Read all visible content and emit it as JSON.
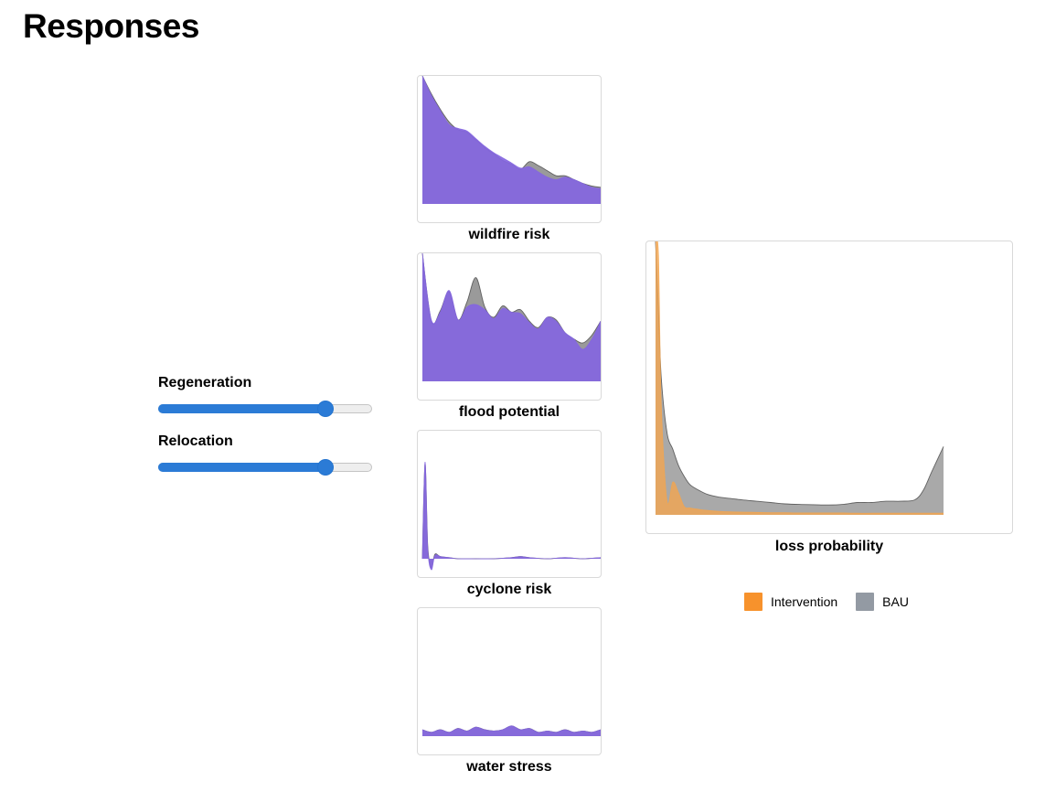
{
  "header": {
    "title": "Responses"
  },
  "sliders": [
    {
      "label": "Regeneration",
      "value": 0.78
    },
    {
      "label": "Relocation",
      "value": 0.78
    }
  ],
  "colors": {
    "intervention_small": "#8466e0",
    "bau": "#9a9a9a",
    "bau_stroke": "#555555",
    "intervention_large": "#f2a550",
    "legend_intervention": "#f7922c",
    "legend_bau": "#939aa3",
    "slider": "#2b7bd6"
  },
  "chart_data": [
    {
      "type": "area",
      "caption": "wildfire risk",
      "x": [
        0,
        0.05,
        0.1,
        0.15,
        0.2,
        0.25,
        0.3,
        0.35,
        0.4,
        0.45,
        0.5,
        0.55,
        0.6,
        0.65,
        0.7,
        0.75,
        0.8,
        0.85,
        0.9,
        0.95,
        1.0
      ],
      "series": [
        {
          "key": "bau",
          "values": [
            1.0,
            0.86,
            0.74,
            0.64,
            0.58,
            0.56,
            0.5,
            0.44,
            0.39,
            0.34,
            0.31,
            0.27,
            0.33,
            0.3,
            0.26,
            0.22,
            0.22,
            0.19,
            0.16,
            0.14,
            0.13
          ]
        },
        {
          "key": "intervention",
          "values": [
            1.0,
            0.85,
            0.73,
            0.62,
            0.59,
            0.57,
            0.51,
            0.45,
            0.4,
            0.36,
            0.32,
            0.28,
            0.29,
            0.25,
            0.21,
            0.19,
            0.21,
            0.19,
            0.16,
            0.13,
            0.12
          ]
        }
      ]
    },
    {
      "type": "area",
      "caption": "flood potential",
      "x": [
        0,
        0.05,
        0.1,
        0.15,
        0.2,
        0.25,
        0.3,
        0.35,
        0.4,
        0.45,
        0.5,
        0.55,
        0.6,
        0.65,
        0.7,
        0.75,
        0.8,
        0.85,
        0.9,
        0.95,
        1.0
      ],
      "series": [
        {
          "key": "bau",
          "values": [
            1.0,
            0.47,
            0.55,
            0.7,
            0.48,
            0.62,
            0.81,
            0.58,
            0.5,
            0.59,
            0.54,
            0.56,
            0.47,
            0.42,
            0.5,
            0.48,
            0.38,
            0.33,
            0.3,
            0.36,
            0.47
          ]
        },
        {
          "key": "intervention",
          "values": [
            1.0,
            0.48,
            0.54,
            0.71,
            0.48,
            0.58,
            0.6,
            0.56,
            0.49,
            0.57,
            0.54,
            0.53,
            0.46,
            0.41,
            0.5,
            0.47,
            0.38,
            0.33,
            0.25,
            0.33,
            0.47
          ]
        }
      ]
    },
    {
      "type": "area",
      "caption": "cyclone risk",
      "x": [
        0,
        0.015,
        0.03,
        0.05,
        0.07,
        0.1,
        0.15,
        0.2,
        0.3,
        0.4,
        0.5,
        0.55,
        0.6,
        0.7,
        0.8,
        0.9,
        1.0
      ],
      "series": [
        {
          "key": "bau",
          "values": [
            0.0,
            0.86,
            0.12,
            -0.08,
            0.04,
            0.02,
            0.01,
            0.0,
            0.0,
            0.0,
            0.01,
            0.02,
            0.01,
            0.0,
            0.01,
            0.0,
            0.01
          ]
        },
        {
          "key": "intervention",
          "values": [
            0.0,
            0.88,
            0.1,
            -0.1,
            0.03,
            0.02,
            0.01,
            0.0,
            0.0,
            0.0,
            0.01,
            0.02,
            0.01,
            0.0,
            0.01,
            0.0,
            0.01
          ]
        }
      ]
    },
    {
      "type": "area",
      "caption": "water stress",
      "x": [
        0,
        0.05,
        0.1,
        0.15,
        0.2,
        0.25,
        0.3,
        0.35,
        0.4,
        0.45,
        0.5,
        0.55,
        0.6,
        0.65,
        0.7,
        0.75,
        0.8,
        0.85,
        0.9,
        0.95,
        1.0
      ],
      "series": [
        {
          "key": "bau",
          "values": [
            0.05,
            0.03,
            0.05,
            0.03,
            0.06,
            0.04,
            0.07,
            0.05,
            0.04,
            0.05,
            0.08,
            0.05,
            0.06,
            0.03,
            0.04,
            0.03,
            0.05,
            0.03,
            0.04,
            0.03,
            0.05
          ]
        },
        {
          "key": "intervention",
          "values": [
            0.05,
            0.03,
            0.05,
            0.03,
            0.06,
            0.04,
            0.07,
            0.05,
            0.04,
            0.05,
            0.08,
            0.05,
            0.06,
            0.03,
            0.04,
            0.03,
            0.05,
            0.03,
            0.04,
            0.03,
            0.05
          ]
        }
      ]
    },
    {
      "type": "area",
      "caption": "loss probability",
      "x": [
        0,
        0.01,
        0.02,
        0.04,
        0.06,
        0.08,
        0.1,
        0.12,
        0.15,
        0.18,
        0.22,
        0.26,
        0.3,
        0.35,
        0.4,
        0.45,
        0.5,
        0.55,
        0.6,
        0.65,
        0.7,
        0.75,
        0.8,
        0.85,
        0.9,
        0.93,
        0.96,
        1.0
      ],
      "series": [
        {
          "key": "bau",
          "values": [
            1.0,
            0.75,
            0.5,
            0.3,
            0.24,
            0.18,
            0.14,
            0.11,
            0.09,
            0.075,
            0.065,
            0.06,
            0.055,
            0.05,
            0.045,
            0.04,
            0.038,
            0.037,
            0.036,
            0.038,
            0.045,
            0.045,
            0.05,
            0.05,
            0.055,
            0.09,
            0.16,
            0.25
          ]
        },
        {
          "key": "intervention",
          "values": [
            1.0,
            0.95,
            0.4,
            0.05,
            0.12,
            0.08,
            0.03,
            0.025,
            0.02,
            0.016,
            0.013,
            0.011,
            0.01,
            0.009,
            0.008,
            0.008,
            0.007,
            0.007,
            0.007,
            0.007,
            0.006,
            0.006,
            0.006,
            0.006,
            0.006,
            0.006,
            0.006,
            0.006
          ]
        }
      ]
    }
  ],
  "legend": [
    {
      "label": "Intervention",
      "color": "#f7922c"
    },
    {
      "label": "BAU",
      "color": "#939aa3"
    }
  ]
}
